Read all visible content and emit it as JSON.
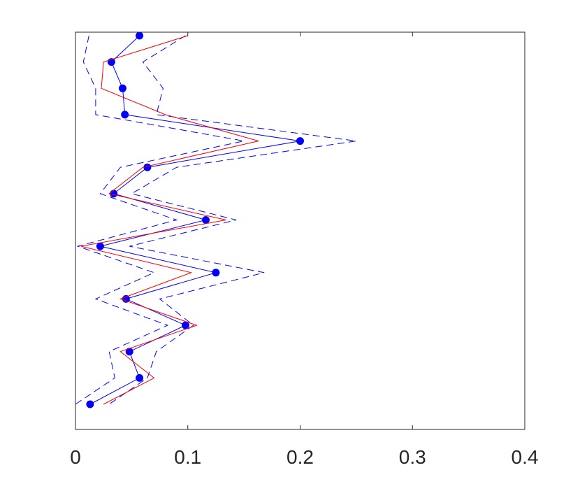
{
  "chart_data": {
    "type": "line",
    "orientation": "vertical-profile",
    "title": "",
    "xlabel": "",
    "ylabel": "",
    "xlim": [
      0,
      0.4
    ],
    "xticks": [
      0,
      0.1,
      0.2,
      0.3,
      0.4
    ],
    "xtick_labels": [
      "0",
      "0.1",
      "0.2",
      "0.3",
      "0.4"
    ],
    "yticks": [],
    "ylim": [
      0,
      15
    ],
    "grid": false,
    "legend": "none",
    "series": [
      {
        "style": "solid-with-markers",
        "color": "#0000ff",
        "points": [
          {
            "x": 0.057,
            "y": 15
          },
          {
            "x": 0.032,
            "y": 14
          },
          {
            "x": 0.042,
            "y": 13
          },
          {
            "x": 0.044,
            "y": 12
          },
          {
            "x": 0.2,
            "y": 11
          },
          {
            "x": 0.064,
            "y": 10
          },
          {
            "x": 0.034,
            "y": 9
          },
          {
            "x": 0.116,
            "y": 8
          },
          {
            "x": 0.022,
            "y": 7
          },
          {
            "x": 0.125,
            "y": 6
          },
          {
            "x": 0.045,
            "y": 5
          },
          {
            "x": 0.098,
            "y": 4
          },
          {
            "x": 0.048,
            "y": 3
          },
          {
            "x": 0.057,
            "y": 2
          },
          {
            "x": 0.013,
            "y": 1
          }
        ]
      },
      {
        "style": "dashed",
        "color": "#0000ff",
        "points": [
          {
            "x": 0.098,
            "y": 15
          },
          {
            "x": 0.06,
            "y": 14
          },
          {
            "x": 0.078,
            "y": 13
          },
          {
            "x": 0.072,
            "y": 12
          },
          {
            "x": 0.25,
            "y": 11
          },
          {
            "x": 0.09,
            "y": 10
          },
          {
            "x": 0.05,
            "y": 9
          },
          {
            "x": 0.143,
            "y": 8
          },
          {
            "x": 0.048,
            "y": 7
          },
          {
            "x": 0.168,
            "y": 6
          },
          {
            "x": 0.075,
            "y": 5
          },
          {
            "x": 0.105,
            "y": 4
          },
          {
            "x": 0.072,
            "y": 3
          },
          {
            "x": 0.064,
            "y": 2
          },
          {
            "x": 0.03,
            "y": 1
          }
        ]
      },
      {
        "style": "dashed",
        "color": "#0000ff",
        "points": [
          {
            "x": 0.012,
            "y": 15
          },
          {
            "x": 0.007,
            "y": 14
          },
          {
            "x": 0.018,
            "y": 13
          },
          {
            "x": 0.018,
            "y": 12
          },
          {
            "x": 0.15,
            "y": 11
          },
          {
            "x": 0.04,
            "y": 10
          },
          {
            "x": 0.022,
            "y": 9
          },
          {
            "x": 0.09,
            "y": 8
          },
          {
            "x": 0.002,
            "y": 7
          },
          {
            "x": 0.07,
            "y": 6
          },
          {
            "x": 0.018,
            "y": 5
          },
          {
            "x": 0.082,
            "y": 4
          },
          {
            "x": 0.03,
            "y": 3
          },
          {
            "x": 0.035,
            "y": 2
          },
          {
            "x": 0.0,
            "y": 1
          }
        ]
      },
      {
        "style": "solid",
        "color": "#ff0000",
        "points": [
          {
            "x": 0.1,
            "y": 15
          },
          {
            "x": 0.025,
            "y": 14
          },
          {
            "x": 0.023,
            "y": 13
          },
          {
            "x": 0.08,
            "y": 12
          },
          {
            "x": 0.163,
            "y": 11
          },
          {
            "x": 0.06,
            "y": 10
          },
          {
            "x": 0.03,
            "y": 9
          },
          {
            "x": 0.134,
            "y": 8
          },
          {
            "x": 0.005,
            "y": 7
          },
          {
            "x": 0.103,
            "y": 6
          },
          {
            "x": 0.04,
            "y": 5
          },
          {
            "x": 0.108,
            "y": 4
          },
          {
            "x": 0.04,
            "y": 3
          },
          {
            "x": 0.07,
            "y": 2
          },
          {
            "x": 0.025,
            "y": 1
          }
        ]
      }
    ]
  }
}
